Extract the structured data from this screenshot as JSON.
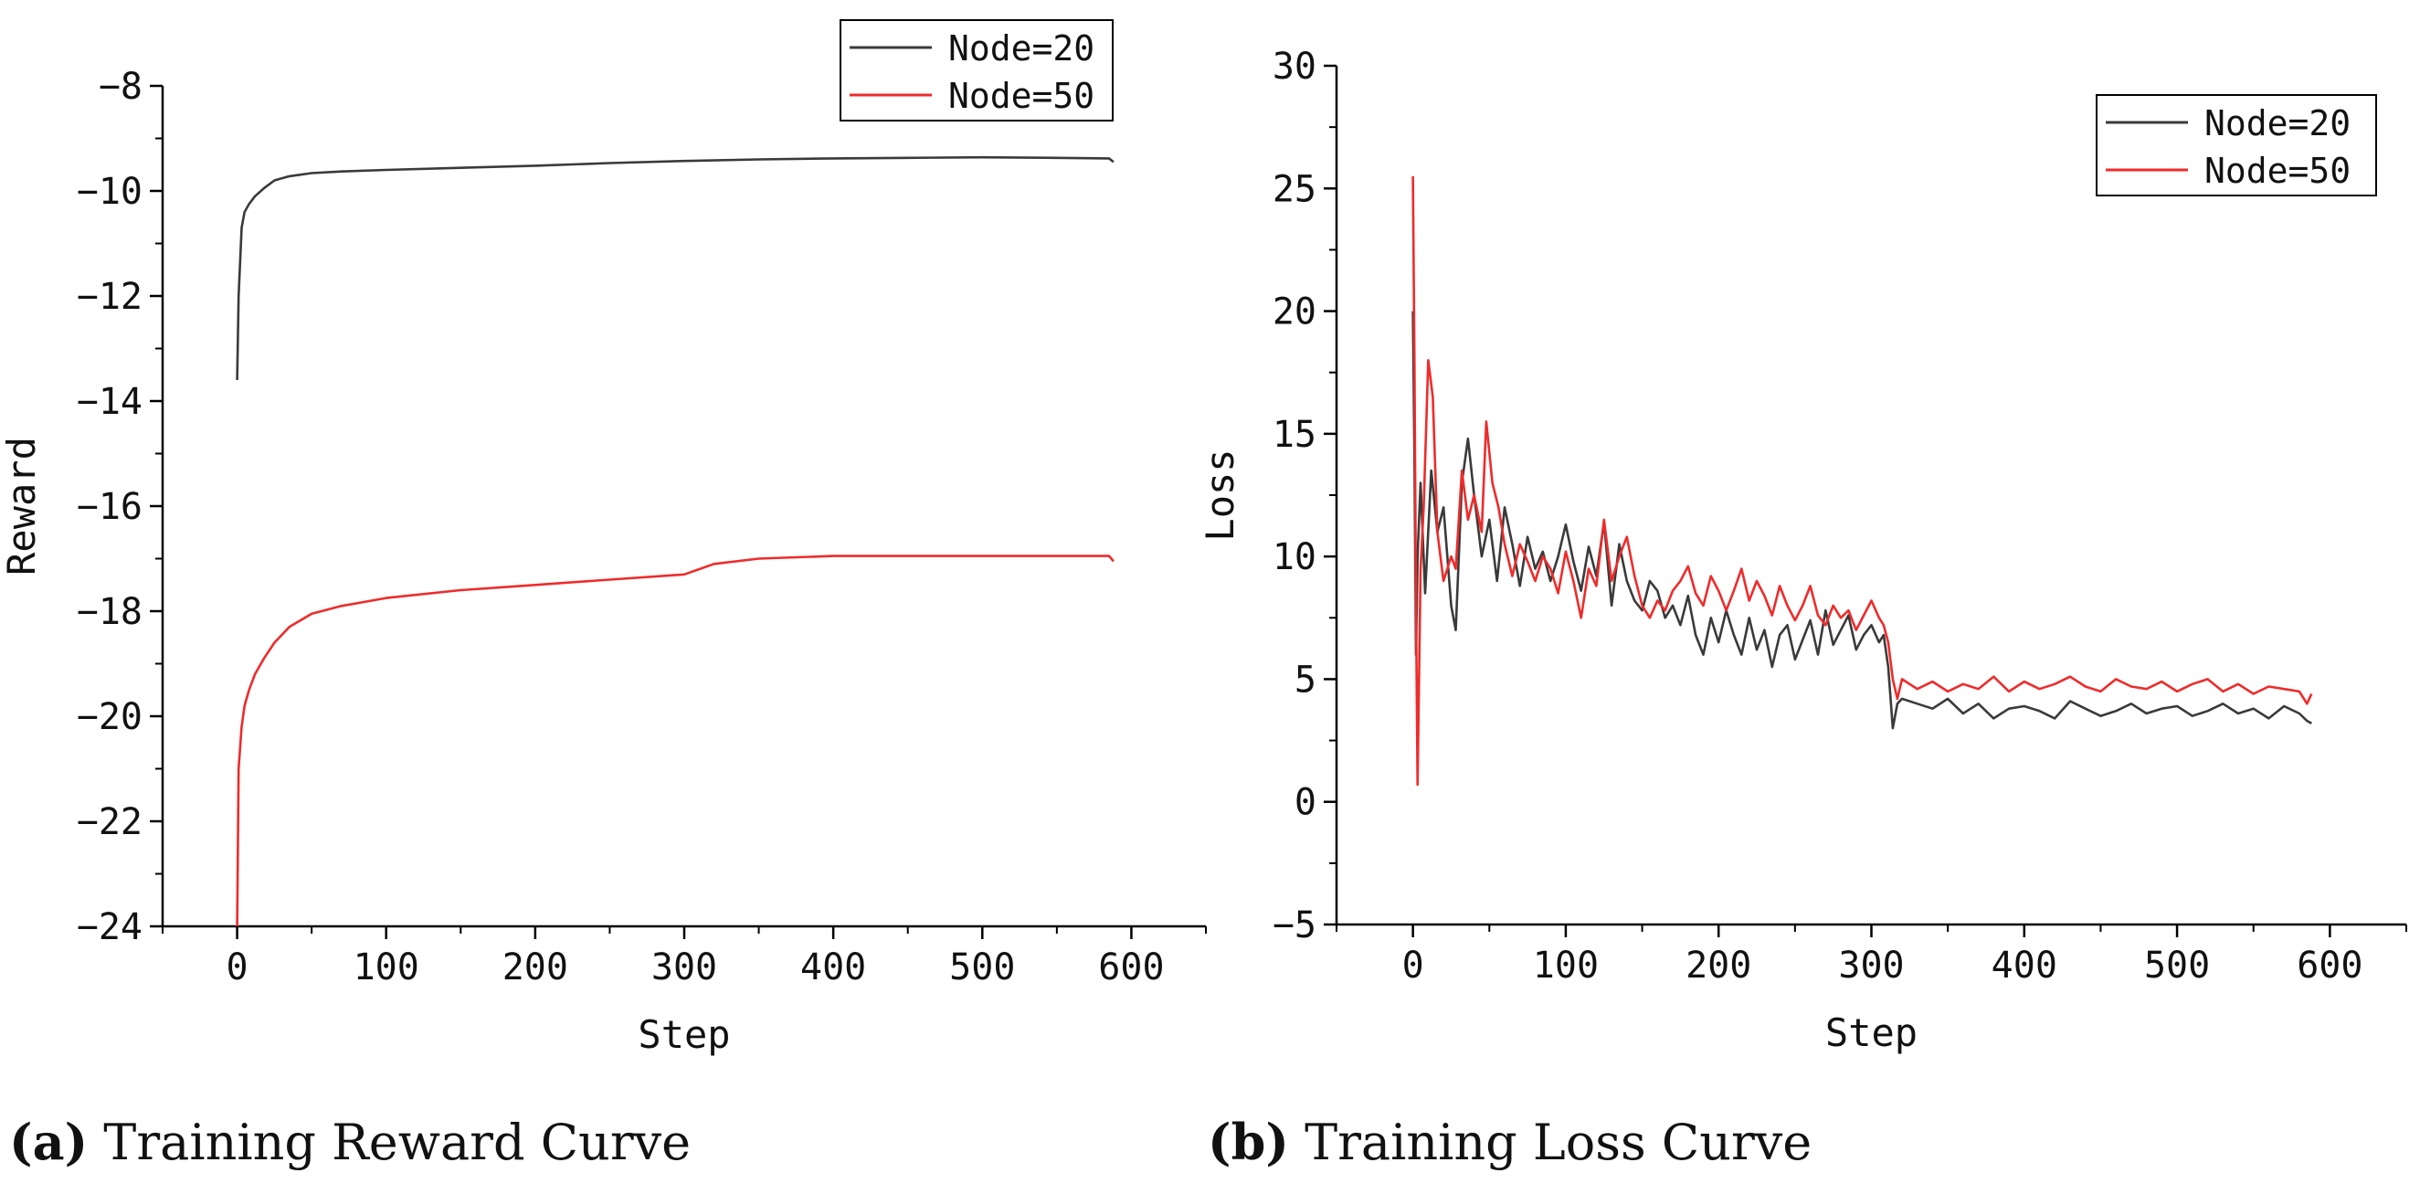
{
  "colors": {
    "node20": "#3a3a3a",
    "node50": "#ef2b2b",
    "axis": "#000000"
  },
  "captions": [
    {
      "label": "a",
      "text": "Training Reward Curve"
    },
    {
      "label": "b",
      "text": "Training Loss Curve"
    }
  ],
  "chart_data": [
    {
      "type": "line",
      "title": "Training Reward Curve",
      "xlabel": "Step",
      "ylabel": "Reward",
      "xlim": [
        -50,
        650
      ],
      "ylim": [
        -24,
        -8
      ],
      "xticks": [
        0,
        100,
        200,
        300,
        400,
        500,
        600
      ],
      "xtick_labels": [
        "0",
        "100",
        "200",
        "300",
        "400",
        "500",
        "600"
      ],
      "yticks": [
        -24,
        -22,
        -20,
        -18,
        -16,
        -14,
        -12,
        -10,
        -8
      ],
      "ytick_labels": [
        "−24",
        "−22",
        "−20",
        "−18",
        "−16",
        "−14",
        "−12",
        "−10",
        "−8"
      ],
      "legend": "top-right",
      "series": [
        {
          "name": "Node=20",
          "color": "#3a3a3a",
          "x": [
            0,
            1,
            3,
            5,
            8,
            12,
            18,
            25,
            35,
            50,
            70,
            100,
            150,
            200,
            250,
            300,
            350,
            400,
            450,
            500,
            550,
            585,
            588
          ],
          "y": [
            -13.6,
            -12.0,
            -10.7,
            -10.4,
            -10.25,
            -10.1,
            -9.95,
            -9.8,
            -9.72,
            -9.66,
            -9.63,
            -9.6,
            -9.56,
            -9.52,
            -9.47,
            -9.43,
            -9.4,
            -9.38,
            -9.37,
            -9.36,
            -9.37,
            -9.38,
            -9.45
          ]
        },
        {
          "name": "Node=50",
          "color": "#ef2b2b",
          "x": [
            0,
            1,
            3,
            5,
            8,
            12,
            18,
            25,
            35,
            50,
            70,
            100,
            150,
            200,
            250,
            300,
            320,
            350,
            400,
            450,
            500,
            550,
            585,
            588
          ],
          "y": [
            -24.0,
            -21.0,
            -20.2,
            -19.8,
            -19.5,
            -19.2,
            -18.9,
            -18.6,
            -18.3,
            -18.05,
            -17.9,
            -17.75,
            -17.6,
            -17.5,
            -17.4,
            -17.3,
            -17.1,
            -17.0,
            -16.95,
            -16.95,
            -16.95,
            -16.95,
            -16.95,
            -17.05
          ]
        }
      ]
    },
    {
      "type": "line",
      "title": "Training Loss Curve",
      "xlabel": "Step",
      "ylabel": "Loss",
      "xlim": [
        -50,
        650
      ],
      "ylim": [
        -5,
        30
      ],
      "xticks": [
        0,
        100,
        200,
        300,
        400,
        500,
        600
      ],
      "xtick_labels": [
        "0",
        "100",
        "200",
        "300",
        "400",
        "500",
        "600"
      ],
      "yticks": [
        -5,
        0,
        5,
        10,
        15,
        20,
        25,
        30
      ],
      "ytick_labels": [
        "−5",
        "0",
        "5",
        "10",
        "15",
        "20",
        "25",
        "30"
      ],
      "legend": "top-right",
      "series": [
        {
          "name": "Node=20",
          "color": "#3a3a3a",
          "x": [
            0,
            1,
            2,
            3,
            5,
            8,
            12,
            16,
            20,
            25,
            28,
            32,
            36,
            40,
            45,
            50,
            55,
            60,
            65,
            70,
            75,
            80,
            85,
            90,
            95,
            100,
            105,
            110,
            115,
            120,
            125,
            130,
            135,
            140,
            145,
            150,
            155,
            160,
            165,
            170,
            175,
            180,
            185,
            190,
            195,
            200,
            205,
            210,
            215,
            220,
            225,
            230,
            235,
            240,
            245,
            250,
            255,
            260,
            265,
            270,
            275,
            280,
            285,
            290,
            295,
            300,
            305,
            308,
            311,
            314,
            317,
            320,
            330,
            340,
            350,
            360,
            370,
            380,
            390,
            400,
            410,
            420,
            430,
            440,
            450,
            460,
            470,
            480,
            490,
            500,
            510,
            520,
            530,
            540,
            550,
            560,
            570,
            580,
            585,
            588
          ],
          "y": [
            20.0,
            14.0,
            6.0,
            10.0,
            13.0,
            8.5,
            13.5,
            11.0,
            12.0,
            8.0,
            7.0,
            13.0,
            14.8,
            12.5,
            10.0,
            11.5,
            9.0,
            12.0,
            10.5,
            8.8,
            10.8,
            9.5,
            10.2,
            9.0,
            10.0,
            11.3,
            9.8,
            8.6,
            10.4,
            9.2,
            11.4,
            8.0,
            10.5,
            9.0,
            8.2,
            7.8,
            9.0,
            8.6,
            7.5,
            8.0,
            7.2,
            8.4,
            6.8,
            6.0,
            7.5,
            6.5,
            7.8,
            6.8,
            6.0,
            7.5,
            6.2,
            7.0,
            5.5,
            6.8,
            7.2,
            5.8,
            6.6,
            7.4,
            6.0,
            7.8,
            6.4,
            7.0,
            7.6,
            6.2,
            6.8,
            7.2,
            6.5,
            6.8,
            5.5,
            3.0,
            4.0,
            4.2,
            4.0,
            3.8,
            4.2,
            3.6,
            4.0,
            3.4,
            3.8,
            3.9,
            3.7,
            3.4,
            4.1,
            3.8,
            3.5,
            3.7,
            4.0,
            3.6,
            3.8,
            3.9,
            3.5,
            3.7,
            4.0,
            3.6,
            3.8,
            3.4,
            3.9,
            3.6,
            3.3,
            3.2
          ]
        },
        {
          "name": "Node=50",
          "color": "#ef2b2b",
          "x": [
            0,
            1,
            2,
            3,
            5,
            7,
            10,
            13,
            16,
            20,
            25,
            28,
            32,
            36,
            40,
            45,
            48,
            52,
            56,
            60,
            65,
            70,
            75,
            80,
            85,
            90,
            95,
            100,
            105,
            110,
            115,
            120,
            125,
            130,
            135,
            140,
            145,
            150,
            155,
            160,
            165,
            170,
            175,
            180,
            185,
            190,
            195,
            200,
            205,
            210,
            215,
            220,
            225,
            230,
            235,
            240,
            245,
            250,
            255,
            260,
            265,
            270,
            275,
            280,
            285,
            290,
            295,
            300,
            305,
            308,
            311,
            314,
            317,
            320,
            330,
            340,
            350,
            360,
            370,
            380,
            390,
            400,
            410,
            420,
            430,
            440,
            450,
            460,
            470,
            480,
            490,
            500,
            510,
            520,
            530,
            540,
            550,
            560,
            570,
            580,
            585,
            588
          ],
          "y": [
            25.5,
            18.0,
            8.0,
            0.7,
            9.5,
            12.0,
            18.0,
            16.5,
            11.0,
            9.0,
            10.0,
            9.5,
            13.5,
            11.5,
            12.5,
            11.0,
            15.5,
            13.0,
            12.0,
            10.5,
            9.2,
            10.5,
            9.8,
            9.0,
            10.0,
            9.5,
            8.5,
            10.2,
            9.0,
            7.5,
            9.5,
            8.8,
            11.5,
            9.0,
            10.0,
            10.8,
            9.2,
            8.0,
            7.5,
            8.2,
            7.8,
            8.6,
            9.0,
            9.6,
            8.5,
            8.0,
            9.2,
            8.6,
            7.8,
            8.6,
            9.5,
            8.2,
            9.0,
            8.4,
            7.6,
            8.8,
            8.0,
            7.4,
            8.0,
            8.8,
            7.6,
            7.2,
            8.0,
            7.5,
            7.8,
            7.0,
            7.6,
            8.2,
            7.5,
            7.2,
            6.5,
            5.0,
            4.2,
            5.0,
            4.6,
            4.9,
            4.5,
            4.8,
            4.6,
            5.1,
            4.5,
            4.9,
            4.6,
            4.8,
            5.1,
            4.7,
            4.5,
            5.0,
            4.7,
            4.6,
            4.9,
            4.5,
            4.8,
            5.0,
            4.5,
            4.8,
            4.4,
            4.7,
            4.6,
            4.5,
            4.0,
            4.4
          ]
        }
      ]
    }
  ]
}
